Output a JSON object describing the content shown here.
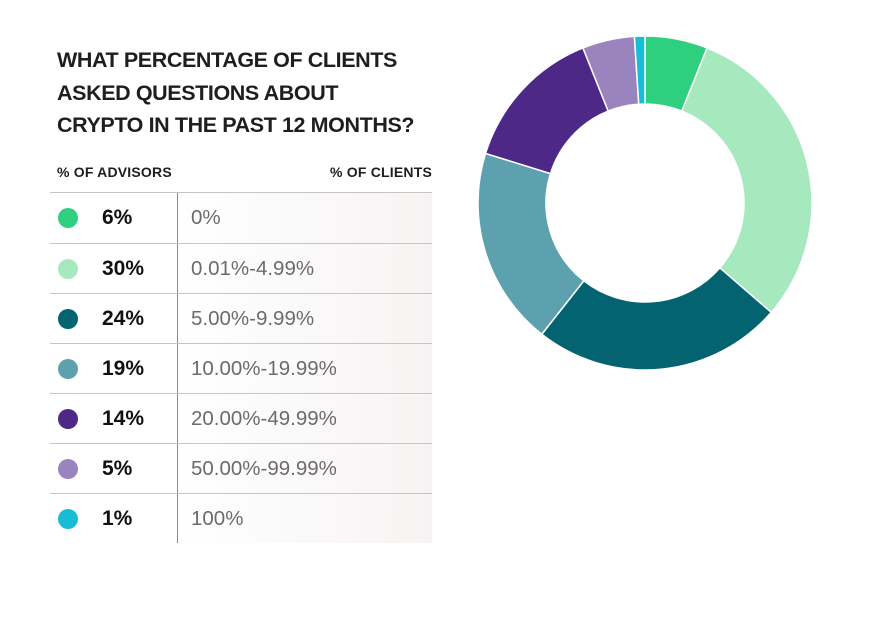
{
  "chart_data": {
    "type": "pie",
    "variant": "donut",
    "title": "WHAT PERCENTAGE OF CLIENTS ASKED QUESTIONS ABOUT CRYPTO IN THE PAST 12 MONTHS?",
    "title_lines": [
      "WHAT PERCENTAGE OF CLIENTS",
      "ASKED QUESTIONS ABOUT",
      "CRYPTO IN THE PAST 12 MONTHS?"
    ],
    "column_headers": {
      "advisors": "% OF ADVISORS",
      "clients": "% OF CLIENTS"
    },
    "legend_placement": "left",
    "slices": [
      {
        "label": "0%",
        "value": 6,
        "value_label": "6%",
        "color": "#2ecf7e"
      },
      {
        "label": "0.01%-4.99%",
        "value": 30,
        "value_label": "30%",
        "color": "#a7e9bf"
      },
      {
        "label": "5.00%-9.99%",
        "value": 24,
        "value_label": "24%",
        "color": "#046370"
      },
      {
        "label": "10.00%-19.99%",
        "value": 19,
        "value_label": "19%",
        "color": "#5ea1ae"
      },
      {
        "label": "20.00%-49.99%",
        "value": 14,
        "value_label": "14%",
        "color": "#4e2886"
      },
      {
        "label": "50.00%-99.99%",
        "value": 5,
        "value_label": "5%",
        "color": "#9a84bd"
      },
      {
        "label": "100%",
        "value": 1,
        "value_label": "1%",
        "color": "#17bdd3"
      }
    ]
  }
}
